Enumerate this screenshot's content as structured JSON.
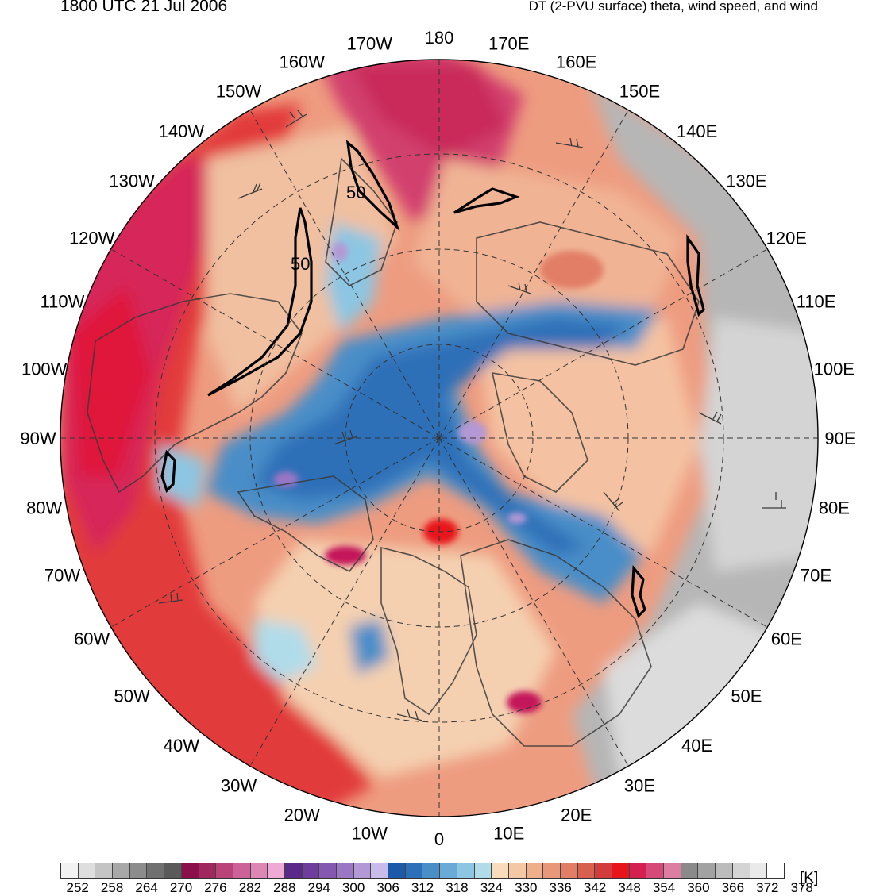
{
  "header": {
    "time_label": "1800 UTC 21 Jul 2006",
    "product_label": "DT (2-PVU surface) theta, wind speed, and wind"
  },
  "map": {
    "projection": "north-polar-stereographic",
    "features": [
      "coastlines",
      "country-borders",
      "lat-lon-graticule",
      "wind-barbs",
      "wind-speed-contours"
    ],
    "contour_label": "50",
    "longitude_labels": [
      "180",
      "170E",
      "160E",
      "150E",
      "140E",
      "130E",
      "120E",
      "110E",
      "100E",
      "90E",
      "80E",
      "70E",
      "60E",
      "50E",
      "40E",
      "30E",
      "20E",
      "10E",
      "0",
      "10W",
      "20W",
      "30W",
      "40W",
      "50W",
      "60W",
      "70W",
      "80W",
      "90W",
      "100W",
      "110W",
      "120W",
      "130W",
      "140W",
      "150W",
      "160W",
      "170W"
    ]
  },
  "colorbar": {
    "unit": "[K]",
    "ticks": [
      "252",
      "258",
      "264",
      "270",
      "276",
      "282",
      "288",
      "294",
      "300",
      "306",
      "312",
      "318",
      "324",
      "330",
      "336",
      "342",
      "348",
      "354",
      "360",
      "366",
      "372",
      "378"
    ],
    "colors": [
      "#f2f2f2",
      "#dedede",
      "#c4c4c4",
      "#a8a8a8",
      "#8c8c8c",
      "#707070",
      "#5a5a5a",
      "#8a0f4a",
      "#a0285e",
      "#b84478",
      "#cc6298",
      "#de86b6",
      "#eeaad4",
      "#5a2a88",
      "#6e3e9c",
      "#8458b0",
      "#9a76c4",
      "#b498d6",
      "#cabcea",
      "#1a5aa8",
      "#2e70b8",
      "#4a8ec8",
      "#6aaad6",
      "#8cc6e2",
      "#b0dcea",
      "#f8dcbc",
      "#f4c8a4",
      "#eeb08a",
      "#e89878",
      "#e27e66",
      "#d8604e",
      "#d23c3c",
      "#e8141c",
      "#d42050",
      "#d64a7a",
      "#dc7ea0",
      "#8a8a8a",
      "#a2a2a2",
      "#bcbcbc",
      "#d4d4d4",
      "#eaeaea",
      "#ffffff"
    ]
  }
}
